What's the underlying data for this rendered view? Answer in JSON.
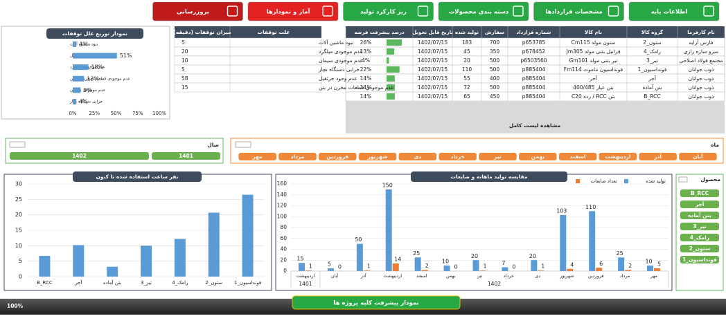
{
  "nav": {
    "buttons": [
      {
        "label": "اطلاعات پایه",
        "color": "#27a844"
      },
      {
        "label": "مشخصات قراردادها",
        "color": "#27a844"
      },
      {
        "label": "دسته بندی محصولات",
        "color": "#27a844"
      },
      {
        "label": "ریز کارکرد تولید",
        "color": "#27a844"
      },
      {
        "label": "آمار و نمودارها",
        "color": "#e52222"
      },
      {
        "label": "بروزرسانی",
        "color": "#c01a1a"
      }
    ]
  },
  "main_table": {
    "columns": [
      "نام کارفرما",
      "گروه کالا",
      "نام کالا",
      "شماره قرارداد",
      "سفارش",
      "تولید شده",
      "تاریخ قابل تحویل",
      "درصد پیشرفت قرضه"
    ],
    "rows": [
      [
        "فارس آرایه",
        "ستون_2",
        "ستون مولد Cm115",
        "p653785",
        700,
        183,
        "1402/07/15",
        "26%"
      ],
      [
        "سرو سازه رازی",
        "رامک_4",
        "قرانیل بتنی مولد Jm305",
        "p678452",
        350,
        45,
        "1402/07/15",
        "13%"
      ],
      [
        "مجتمع فولاد اصلاحی",
        "تیر_3",
        "تیر بتنی مولد Gm101",
        "p6503560",
        500,
        20,
        "1402/07/15",
        "4%"
      ],
      [
        "ذوب جوانان",
        "فونداسیون_1",
        "فونداسیون ماموت Fm114",
        "p885404",
        500,
        110,
        "1402/07/15",
        "22%"
      ],
      [
        "ذوب جوانان",
        "آجر",
        "آجر",
        "p885404",
        400,
        55,
        "1402/07/15",
        "14%"
      ],
      [
        "ذوب جوانان",
        "بتن آماده",
        "بتن عیار 400/485",
        "p885404",
        500,
        72,
        "1402/07/15",
        "14%"
      ],
      [
        "ذوب جوانان",
        "B_RCC",
        "بتن RCC / رده C20",
        "p885404",
        450,
        65,
        "1402/07/15",
        "14%"
      ]
    ],
    "footer": "مشاهده لیست کامل"
  },
  "stops_table": {
    "columns": [
      "علت توقفات",
      "میزان توقفات (دقیقه)"
    ],
    "rows": [
      [
        "نبود ماشین آلات",
        5
      ],
      [
        "عدم موجودی میلگرد",
        20
      ],
      [
        "عدم موجودی سیمان",
        10
      ],
      [
        "خرابی دستگاه بچار",
        5
      ],
      [
        "عدم وجود جرثقیل",
        58
      ],
      [
        "عدم موجودی قطعات مخزن در بتن",
        15
      ]
    ]
  },
  "year_slicer": {
    "title": "سال",
    "items": [
      "1401",
      "1402"
    ]
  },
  "month_slicer": {
    "title": "ماه",
    "items": [
      "آبان",
      "آذر",
      "اردیبهشت",
      "اسفند",
      "بهمن",
      "تیر",
      "خرداد",
      "دی",
      "شهریور",
      "فروردین",
      "مرداد",
      "مهر"
    ]
  },
  "product_slicer": {
    "title": "محصول",
    "items": [
      "B_RCC",
      "آجر",
      "بتن آماده",
      "تیر_3",
      "رامک_4",
      "ستون_2",
      "فونداسیون_1"
    ]
  },
  "chart_data": [
    {
      "type": "hbar",
      "title": "نمودار توزیع علل توقفات",
      "categories": [
        "نبود ماشین آلات",
        "عدم وجود جرثقیل",
        "عدم موجودی میلگرد",
        "عدم موجودی قطعات مخزن در بتن",
        "عدم موجودی سیمان",
        "خرابی دستگاه بچار"
      ],
      "values": [
        4,
        51,
        18,
        13,
        9,
        4
      ],
      "value_labels": [
        "4%",
        "51%",
        "18%",
        "13%",
        "9%",
        "4%"
      ],
      "color": "#5b9bd5",
      "xlim": [
        0,
        100
      ],
      "xticks": [
        {
          "value": 0,
          "label": "0%"
        },
        {
          "value": 25,
          "label": "25%"
        },
        {
          "value": 50,
          "label": "50%"
        },
        {
          "value": 75,
          "label": "75%"
        },
        {
          "value": 100,
          "label": "100%"
        }
      ]
    },
    {
      "type": "bar",
      "title": "نفر ساعت استفاده شده تا کنون",
      "categories": [
        "B_RCC",
        "آجر",
        "بتن آماده",
        "تیر_3",
        "رامک_4",
        "ستون_2",
        "فونداسیون_1"
      ],
      "values": [
        6.7,
        10.2,
        3.2,
        10,
        12.2,
        20.7,
        26.5
      ],
      "color": "#5b9bd5",
      "ylim": [
        0,
        30
      ],
      "yticks": [
        0,
        5,
        10,
        15,
        20,
        25,
        30
      ],
      "grid": true
    },
    {
      "type": "grouped_bar",
      "title": "مقایسه تولید ماهانه و ضایعات",
      "groups": [
        {
          "name": "1401",
          "categories": [
            "اردیبهشت"
          ]
        },
        {
          "name": "1402",
          "categories": [
            "آبان",
            "آذر",
            "اردیبهشت",
            "اسفند",
            "بهمن",
            "تیر",
            "خرداد",
            "دی",
            "شهریور",
            "فروردین",
            "مرداد",
            "مهر"
          ]
        }
      ],
      "series": [
        {
          "name": "تولید شده",
          "color": "#5b9bd5",
          "values": [
            15,
            5,
            50,
            150,
            25,
            10,
            20,
            7,
            20,
            103,
            110,
            25,
            10
          ]
        },
        {
          "name": "تعداد ضایعات",
          "color": "#ed7d31",
          "values": [
            1,
            0,
            1,
            14,
            2,
            0,
            1,
            0,
            1,
            4,
            6,
            2,
            5
          ]
        }
      ],
      "ylim": [
        0,
        160
      ],
      "yticks": [
        0,
        20,
        40,
        60,
        80,
        100,
        120,
        140,
        160
      ],
      "grid": true,
      "legend": "top-right"
    }
  ],
  "footer": {
    "progress_label": "100%",
    "button": "نمودار پیشرفت کلیه پروژه ها"
  }
}
